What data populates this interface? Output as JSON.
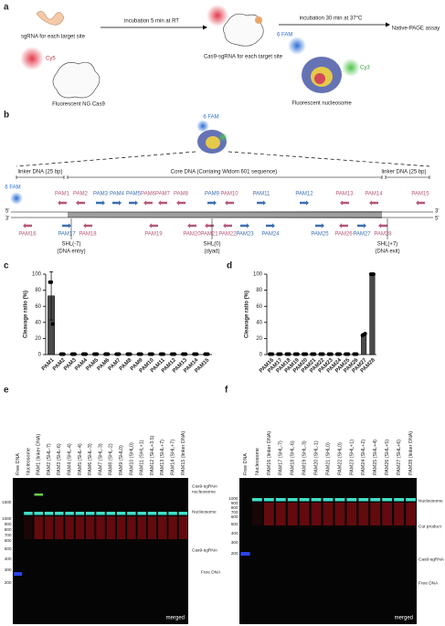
{
  "panel_a": {
    "label": "a",
    "sgrna": "sgRNA for each target site",
    "cy5": "Cy5",
    "cas9": "Fluorescent NG Cas9",
    "step1": "incubation 5 min at RT",
    "complex": "Cas9-sgRNA for each target site",
    "step2": "incubation 30 min at 37°C",
    "assay": "Native-PAGE assay",
    "fam": "6 FAM",
    "cy3": "Cy3",
    "nucleosome": "Fluorescent nucleosome"
  },
  "panel_b": {
    "label": "b",
    "fam_top": "6 FAM",
    "linker_left": "linker DNA (25 bp)",
    "core": "Core DNA (Containg Widom 601 sequence)",
    "linker_right": "linker DNA (25 bp)",
    "fam_left": "6 FAM",
    "ends": [
      "5'",
      "3'",
      "3'",
      "5'"
    ],
    "top_pams": [
      {
        "name": "PAM1",
        "color": "#b5577a"
      },
      {
        "name": "PAM2",
        "color": "#b5577a"
      },
      {
        "name": "PAM3",
        "color": "#3d6fb0"
      },
      {
        "name": "PAM4",
        "color": "#3d6fb0"
      },
      {
        "name": "PAM5",
        "color": "#3d6fb0"
      },
      {
        "name": "PAM6",
        "color": "#b5577a"
      },
      {
        "name": "PAM7",
        "color": "#b5577a"
      },
      {
        "name": "PAM8",
        "color": "#b5577a"
      },
      {
        "name": "PAM9",
        "color": "#3d6fb0"
      },
      {
        "name": "PAM10",
        "color": "#b5577a"
      },
      {
        "name": "PAM11",
        "color": "#3d6fb0"
      },
      {
        "name": "PAM12",
        "color": "#3d6fb0"
      },
      {
        "name": "PAM13",
        "color": "#b5577a"
      },
      {
        "name": "PAM14",
        "color": "#b5577a"
      },
      {
        "name": "PAM15",
        "color": "#b5577a"
      }
    ],
    "bottom_pams": [
      {
        "name": "PAM16",
        "color": "#b5577a"
      },
      {
        "name": "PAM17",
        "color": "#3d6fb0"
      },
      {
        "name": "PAM18",
        "color": "#b5577a"
      },
      {
        "name": "PAM19",
        "color": "#b5577a"
      },
      {
        "name": "PAM20",
        "color": "#b5577a"
      },
      {
        "name": "PAM21",
        "color": "#b5577a"
      },
      {
        "name": "PAM22",
        "color": "#b5577a"
      },
      {
        "name": "PAM23",
        "color": "#3d6fb0"
      },
      {
        "name": "PAM24",
        "color": "#3d6fb0"
      },
      {
        "name": "PAM25",
        "color": "#3d6fb0"
      },
      {
        "name": "PAM26",
        "color": "#b5577a"
      },
      {
        "name": "PAM27",
        "color": "#3d6fb0"
      },
      {
        "name": "PAM28",
        "color": "#b5577a"
      }
    ],
    "shl": [
      {
        "name": "SHL(-7)",
        "note": "(DNA entry)"
      },
      {
        "name": "SHL(0)",
        "note": "(dyad)"
      },
      {
        "name": "SHL(+7)",
        "note": "(DNA exit)"
      }
    ]
  },
  "chart_data": [
    {
      "label": "c",
      "type": "bar",
      "ylabel": "Cleavage ratio (%)",
      "categories": [
        "PAM1",
        "PAM2",
        "PAM3",
        "PAM4",
        "PAM5",
        "PAM6",
        "PAM7",
        "PAM8",
        "PAM9",
        "PAM10",
        "PAM11",
        "PAM12",
        "PAM13",
        "PAM14",
        "PAM15"
      ],
      "values": [
        73,
        0.5,
        0.5,
        0.5,
        0.5,
        0.5,
        0.5,
        0.5,
        0.5,
        0.5,
        0.5,
        0.5,
        0.5,
        0.5,
        0.5
      ],
      "errors": [
        30,
        0,
        0,
        0,
        0,
        0,
        0,
        0,
        0,
        0,
        0,
        0,
        0,
        0,
        0
      ],
      "points": [
        [
          90,
          90,
          38
        ],
        [
          0.5,
          0.5,
          0.5
        ],
        [
          0.5,
          0.5,
          0.5
        ],
        [
          0.5,
          0.5,
          0.5
        ],
        [
          0.5,
          0.5,
          0.5
        ],
        [
          0.5,
          0.5,
          0.5
        ],
        [
          0.5,
          0.5,
          0.5
        ],
        [
          0.5,
          0.5,
          0.5
        ],
        [
          0.5,
          0.5,
          0.5
        ],
        [
          0.5,
          0.5,
          0.5
        ],
        [
          0.5,
          0.5,
          0.5
        ],
        [
          0.5,
          0.5,
          0.5
        ],
        [
          0.5,
          0.5,
          0.5
        ],
        [
          0.5,
          0.5,
          0.5
        ],
        [
          0.5,
          0.5,
          0.5
        ]
      ],
      "color": "#4a4a4a",
      "ylim": [
        0,
        100
      ],
      "yticks": [
        0,
        20,
        40,
        60,
        80,
        100
      ]
    },
    {
      "label": "d",
      "type": "bar",
      "ylabel": "Cleavage ratio (%)",
      "categories": [
        "PAM16",
        "PAM17",
        "PAM18",
        "PAM19",
        "PAM20",
        "PAM21",
        "PAM22",
        "PAM23",
        "PAM24",
        "PAM25",
        "PAM26",
        "PAM27",
        "PAM28"
      ],
      "values": [
        0.5,
        0.5,
        0.5,
        0.5,
        0.5,
        0.5,
        0.5,
        0.5,
        0.5,
        0.5,
        0.5,
        25,
        100
      ],
      "errors": [
        0,
        0,
        0,
        0,
        0,
        0,
        0,
        0,
        0,
        0,
        0,
        1,
        0.5
      ],
      "points": [
        [
          0.5,
          0.5,
          0.5
        ],
        [
          0.5,
          0.5,
          0.5
        ],
        [
          0.5,
          0.5,
          0.5
        ],
        [
          0.5,
          0.5,
          0.5
        ],
        [
          0.5,
          0.5,
          0.5
        ],
        [
          0.5,
          0.5,
          0.5
        ],
        [
          0.5,
          0.5,
          0.5
        ],
        [
          0.5,
          0.5,
          0.5
        ],
        [
          0.5,
          0.5,
          0.5
        ],
        [
          0.5,
          0.5,
          0.5
        ],
        [
          0.5,
          0.5,
          0.5
        ],
        [
          24,
          25,
          26
        ],
        [
          100,
          100,
          100
        ]
      ],
      "color": "#4a4a4a",
      "ylim": [
        0,
        100
      ],
      "yticks": [
        0,
        20,
        40,
        60,
        80,
        100
      ]
    }
  ],
  "panel_e": {
    "label": "e",
    "caption": "merged",
    "lanes": [
      "Free DNA",
      "Nucleosome",
      "PAM1 (linker DNA)",
      "PAM2 (SHL-7)",
      "PAM3 (SHL-6)",
      "PAM4 (SHL-4)",
      "PAM5 (SHL-4)",
      "PAM6 (SHL-3)",
      "PAM7 (SHL-3)",
      "PAM8 (SHL-2)",
      "PAM9 (SHL0)",
      "PAM10 (SHL0)",
      "PAM11 (SHL+1)",
      "PAM12 (SHL+3.5)",
      "PAM13 (SHL+7)",
      "PAM14 (SHL+7)",
      "PAM15 (linker DNA)"
    ],
    "markers": [
      "1500",
      "1000",
      "900",
      "800",
      "700",
      "600",
      "500",
      "400",
      "300",
      "200"
    ],
    "annotations": [
      "Cas9-sgRNA",
      "nucleosome",
      "Nucleosome",
      "Cas9-sgRNA",
      "Free DNA"
    ]
  },
  "panel_f": {
    "label": "f",
    "caption": "merged",
    "lanes": [
      "Free DNA",
      "Nucleosome",
      "PAM16 (linker DNA)",
      "PAM17 (SHL-7)",
      "PAM18 (SHL-6)",
      "PAM19 (SHL-3)",
      "PAM20 (SHL-1)",
      "PAM21 (SHL0)",
      "PAM22 (SHL0)",
      "PAM23 (SHL+1)",
      "PAM24 (SHL+2)",
      "PAM25 (SHL+4)",
      "PAM26 (SHL+5)",
      "PAM27 (SHL+6)",
      "PAM28 (linker DNA)"
    ],
    "markers": [
      "1000",
      "900",
      "800",
      "700",
      "600",
      "500",
      "400",
      "300",
      "200"
    ],
    "annotations": [
      "Nucleosome",
      "Cut product",
      "Cas9-sgRNA",
      "Free DNA"
    ]
  }
}
